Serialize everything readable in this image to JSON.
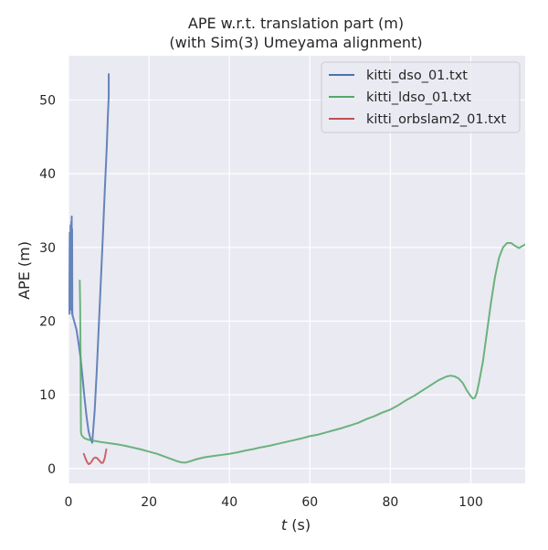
{
  "chart_data": {
    "type": "line",
    "title_line1": "APE w.r.t. translation part (m)",
    "title_line2": "(with Sim(3) Umeyama alignment)",
    "xlabel_italic": "t",
    "xlabel_rest": " (s)",
    "ylabel": "APE (m)",
    "xlim": [
      0,
      113.5
    ],
    "ylim": [
      -2,
      56
    ],
    "xticks": [
      0,
      20,
      40,
      60,
      80,
      100
    ],
    "yticks": [
      0,
      10,
      20,
      30,
      40,
      50
    ],
    "grid": true,
    "legend_position": "top-right",
    "series": [
      {
        "name": "kitti_dso_01.txt",
        "color": "#4c72b0",
        "x": [
          0.2,
          0.3,
          0.35,
          0.4,
          0.45,
          0.5,
          0.55,
          0.6,
          0.65,
          0.7,
          0.75,
          0.8,
          0.85,
          0.9,
          0.95,
          1.0,
          1.5,
          2.0,
          2.5,
          3.0,
          3.5,
          4.0,
          4.5,
          5.0,
          5.5,
          5.9,
          6.5,
          7.0,
          7.5,
          8.0,
          8.5,
          9.0,
          9.5,
          9.8,
          10.0,
          10.0
        ],
        "y": [
          21.0,
          32.0,
          22.0,
          31.0,
          23.0,
          33.0,
          22.0,
          32.0,
          21.5,
          33.5,
          22.5,
          34.2,
          21.0,
          32.5,
          21.5,
          20.8,
          19.8,
          18.8,
          17.0,
          15.0,
          12.3,
          9.5,
          7.0,
          5.0,
          4.0,
          3.5,
          7.8,
          13.0,
          19.0,
          25.0,
          31.0,
          37.5,
          43.5,
          48.0,
          50.5,
          53.5
        ]
      },
      {
        "name": "kitti_ldso_01.txt",
        "color": "#55a868",
        "x": [
          2.8,
          2.9,
          3.0,
          3.05,
          3.1,
          3.3,
          3.6,
          4.0,
          4.5,
          5.0,
          6.0,
          7.0,
          8.0,
          10.0,
          12.0,
          14.0,
          16.0,
          18.0,
          20.0,
          22.0,
          24.0,
          26.0,
          27.0,
          28.0,
          29.0,
          30.0,
          32.0,
          34.0,
          36.0,
          38.0,
          40.0,
          42.0,
          44.0,
          46.0,
          48.0,
          50.0,
          52.0,
          54.0,
          56.0,
          58.0,
          60.0,
          62.0,
          64.0,
          66.0,
          68.0,
          70.0,
          72.0,
          74.0,
          76.0,
          78.0,
          80.0,
          82.0,
          84.0,
          86.0,
          88.0,
          90.0,
          92.0,
          94.0,
          95.0,
          96.0,
          97.0,
          98.0,
          99.0,
          100.0,
          100.5,
          101.0,
          101.5,
          102.0,
          103.0,
          104.0,
          105.0,
          106.0,
          107.0,
          108.0,
          109.0,
          110.0,
          111.0,
          112.0,
          112.5,
          113.5
        ],
        "y": [
          25.5,
          22.0,
          15.0,
          8.0,
          4.9,
          4.5,
          4.3,
          4.1,
          4.0,
          3.9,
          3.8,
          3.7,
          3.6,
          3.45,
          3.3,
          3.1,
          2.85,
          2.6,
          2.3,
          2.0,
          1.6,
          1.2,
          1.0,
          0.85,
          0.8,
          0.95,
          1.3,
          1.55,
          1.7,
          1.85,
          2.0,
          2.2,
          2.45,
          2.65,
          2.9,
          3.1,
          3.35,
          3.6,
          3.85,
          4.1,
          4.4,
          4.6,
          4.9,
          5.2,
          5.5,
          5.85,
          6.2,
          6.7,
          7.1,
          7.6,
          8.0,
          8.6,
          9.3,
          9.9,
          10.6,
          11.3,
          12.0,
          12.5,
          12.6,
          12.5,
          12.2,
          11.6,
          10.6,
          9.8,
          9.5,
          9.6,
          10.3,
          11.6,
          14.5,
          18.5,
          22.5,
          26.0,
          28.6,
          30.0,
          30.6,
          30.6,
          30.2,
          29.9,
          30.1,
          30.4
        ]
      },
      {
        "name": "kitti_orbslam2_01.txt",
        "color": "#c44e52",
        "x": [
          3.8,
          4.2,
          4.6,
          5.0,
          5.4,
          5.8,
          6.2,
          6.6,
          7.0,
          7.4,
          7.8,
          8.2,
          8.6,
          9.0,
          9.2,
          9.4
        ],
        "y": [
          2.0,
          1.4,
          0.9,
          0.6,
          0.7,
          1.0,
          1.35,
          1.5,
          1.45,
          1.25,
          1.0,
          0.75,
          0.8,
          1.4,
          2.0,
          2.6
        ]
      }
    ]
  }
}
